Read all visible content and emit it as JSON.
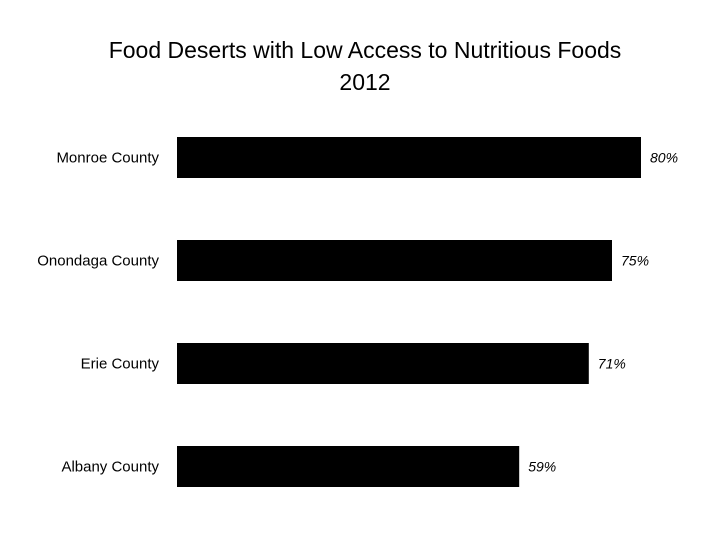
{
  "chart_data": {
    "type": "bar",
    "orientation": "horizontal",
    "title": "Food Deserts with Low Access to Nutritious Foods",
    "subtitle": "2012",
    "categories": [
      "Monroe County",
      "Onondaga County",
      "Erie County",
      "Albany County"
    ],
    "values": [
      80,
      75,
      71,
      59
    ],
    "value_labels": [
      "80%",
      "75%",
      "71%",
      "59%"
    ],
    "xlim": [
      0,
      80
    ],
    "grid": false,
    "legend": false,
    "bar_color": "#000000"
  }
}
